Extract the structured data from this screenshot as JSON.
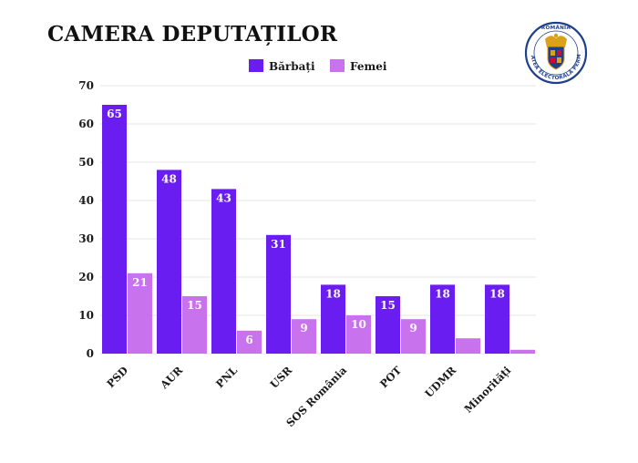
{
  "title": "CAMERA DEPUTAȚILOR",
  "colors": {
    "barbati": "#6a1df0",
    "femei": "#c872ee",
    "grid": "#e6e6e6",
    "seal_blue": "#1f3f8c",
    "seal_gold": "#d9a21a",
    "seal_red": "#c8102e"
  },
  "seal": {
    "top_text": "ROMÂNIA",
    "ring_text": "AUTORITATEA ELECTORALĂ PERMANENTĂ"
  },
  "chart_data": {
    "type": "bar",
    "title": "CAMERA DEPUTAȚILOR",
    "categories": [
      "PSD",
      "AUR",
      "PNL",
      "USR",
      "SOS România",
      "POT",
      "UDMR",
      "Minorități"
    ],
    "series": [
      {
        "name": "Bărbați",
        "values": [
          65,
          48,
          43,
          31,
          18,
          15,
          18,
          18
        ],
        "labels": [
          "65",
          "48",
          "43",
          "31",
          "18",
          "15",
          "18",
          "18"
        ]
      },
      {
        "name": "Femei",
        "values": [
          21,
          15,
          6,
          9,
          10,
          9,
          4,
          1
        ],
        "labels": [
          "21",
          "15",
          "6",
          "9",
          "10",
          "9",
          "",
          ""
        ]
      }
    ],
    "ylim": [
      0,
      70
    ],
    "yticks": [
      0,
      10,
      20,
      30,
      40,
      50,
      60,
      70
    ],
    "grid": true,
    "legend": "top-center",
    "xlabel": "",
    "ylabel": ""
  }
}
